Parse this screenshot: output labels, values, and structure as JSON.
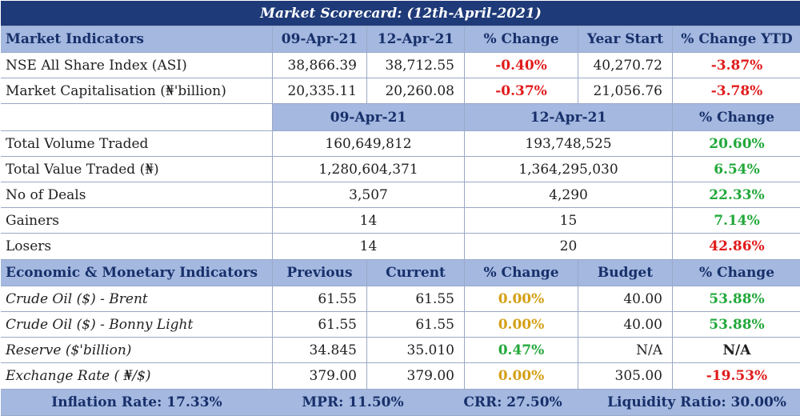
{
  "title": "Market Scorecard: (12th-April-2021)",
  "market": {
    "headers": [
      "Market Indicators",
      "09-Apr-21",
      "12-Apr-21",
      "% Change",
      "Year Start",
      "% Change YTD"
    ],
    "rows": [
      {
        "label": "NSE All Share Index (ASI)",
        "prev": "38,866.39",
        "curr": "38,712.55",
        "change": "-0.40%",
        "year_start": "40,270.72",
        "ytd": "-3.87%"
      },
      {
        "label": "Market Capitalisation (₦'billion)",
        "prev": "20,335.11",
        "curr": "20,260.08",
        "change": "-0.37%",
        "year_start": "21,056.76",
        "ytd": "-3.78%"
      }
    ]
  },
  "trading": {
    "headers": [
      "09-Apr-21",
      "12-Apr-21",
      "% Change"
    ],
    "rows": [
      {
        "label": "Total Volume Traded",
        "prev": "160,649,812",
        "curr": "193,748,525",
        "change": "20.60%"
      },
      {
        "label": "Total Value Traded (₦)",
        "prev": "1,280,604,371",
        "curr": "1,364,295,030",
        "change": "6.54%"
      },
      {
        "label": "No of Deals",
        "prev": "3,507",
        "curr": "4,290",
        "change": "22.33%"
      },
      {
        "label": "Gainers",
        "prev": "14",
        "curr": "15",
        "change": "7.14%"
      },
      {
        "label": "Losers",
        "prev": "14",
        "curr": "20",
        "change": "42.86%"
      }
    ]
  },
  "economic": {
    "headers": [
      "Economic & Monetary Indicators",
      "Previous",
      "Current",
      "% Change",
      "Budget",
      "% Change"
    ],
    "rows": [
      {
        "label": "Crude Oil ($) - Brent",
        "prev": "61.55",
        "curr": "61.55",
        "change": "0.00%",
        "budget": "40.00",
        "bchange": "53.88%"
      },
      {
        "label": "Crude Oil ($) - Bonny Light",
        "prev": "61.55",
        "curr": "61.55",
        "change": "0.00%",
        "budget": "40.00",
        "bchange": "53.88%"
      },
      {
        "label": "Reserve ($'billion)",
        "prev": "34.845",
        "curr": "35.010",
        "change": "0.47%",
        "budget": "N/A",
        "bchange": "N/A"
      },
      {
        "label": "Exchange Rate ( ₦/$)",
        "prev": "379.00",
        "curr": "379.00",
        "change": "0.00%",
        "budget": "305.00",
        "bchange": "-19.53%"
      }
    ]
  },
  "footer": {
    "inflation": "Inflation Rate: 17.33%",
    "mpr": "MPR: 11.50%",
    "crr": "CRR: 27.50%",
    "liquidity": "Liquidity Ratio: 30.00%"
  },
  "colors": {
    "title_bg": "#1f3a78",
    "header_bg": "#a4b8e0",
    "negative": "#e01b1b",
    "positive": "#22a83a",
    "neutral": "#d4a017"
  }
}
